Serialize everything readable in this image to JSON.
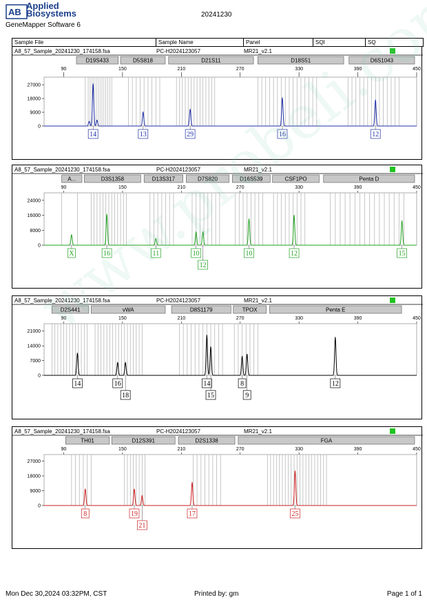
{
  "header": {
    "brand_line1": "Applied",
    "brand_line2": "Biosystems",
    "software": "GeneMapper Software 6",
    "run_date": "20241230"
  },
  "columns": [
    "Sample File",
    "Sample Name",
    "Panel",
    "SQI",
    "SQ"
  ],
  "footer": {
    "datetime": "Mon Dec 30,2024 03:32PM, CST",
    "printed_by": "Printed by: gm",
    "page": "Page 1 of 1"
  },
  "watermark": "www.probeli.com.cn",
  "colors": {
    "blue": "#1f2fa8",
    "green": "#22a022",
    "black": "#000000",
    "red": "#cc1f1f",
    "status_ok": "#22c322"
  },
  "chart_data": [
    {
      "type": "line",
      "sample_file": "A8_57_Sample_20241230_174158.fsa",
      "sample_name": "PC-H2024123057",
      "panel": "MR21_v2.1",
      "color": "blue",
      "xlim": [
        70,
        450
      ],
      "xticks": [
        90,
        150,
        210,
        270,
        330,
        390,
        450
      ],
      "ylim": [
        0,
        32000
      ],
      "yticks": [
        0,
        9000,
        18000,
        27000
      ],
      "markers": [
        {
          "name": "D19S433",
          "range": [
            103,
            147
          ]
        },
        {
          "name": "D5S818",
          "range": [
            148,
            195
          ]
        },
        {
          "name": "D21S11",
          "range": [
            197,
            285
          ]
        },
        {
          "name": "D18S51",
          "range": [
            288,
            377
          ]
        },
        {
          "name": "D6S1043",
          "range": [
            381,
            456
          ]
        }
      ],
      "bins": [
        112,
        115,
        117,
        119,
        121,
        123,
        125,
        127,
        129,
        131,
        133,
        135,
        137,
        139,
        156,
        160,
        164,
        168,
        172,
        176,
        180,
        184,
        188,
        205,
        208,
        211,
        214,
        217,
        220,
        223,
        226,
        229,
        232,
        235,
        238,
        241,
        244,
        288,
        292,
        296,
        300,
        304,
        308,
        312,
        316,
        320,
        324,
        328,
        332,
        336,
        340,
        344,
        348,
        380,
        384,
        388,
        392,
        396,
        400,
        404,
        408,
        412,
        416,
        420,
        424,
        428,
        432
      ],
      "peaks": [
        {
          "x": 116,
          "height": 3000
        },
        {
          "x": 120,
          "height": 27500
        },
        {
          "x": 124,
          "height": 3800
        },
        {
          "x": 171,
          "height": 9000
        },
        {
          "x": 219,
          "height": 11000
        },
        {
          "x": 313,
          "height": 18500
        },
        {
          "x": 408,
          "height": 17000
        }
      ],
      "alleles": [
        {
          "label": "14",
          "x": 120,
          "row": 0
        },
        {
          "label": "13",
          "x": 171,
          "row": 0
        },
        {
          "label": "29",
          "x": 219,
          "row": 0
        },
        {
          "label": "16",
          "x": 313,
          "row": 0
        },
        {
          "label": "12",
          "x": 408,
          "row": 0
        }
      ]
    },
    {
      "type": "line",
      "sample_file": "A8_57_Sample_20241230_174158.fsa",
      "sample_name": "PC-H2024123057",
      "panel": "MR21_v2.1",
      "color": "green",
      "xlim": [
        70,
        450
      ],
      "xticks": [
        90,
        150,
        210,
        270,
        330,
        390,
        450
      ],
      "ylim": [
        0,
        28000
      ],
      "yticks": [
        0,
        8000,
        16000,
        24000
      ],
      "markers": [
        {
          "name": "A...",
          "range": [
            88,
            110
          ]
        },
        {
          "name": "D3S1358",
          "range": [
            111,
            170
          ]
        },
        {
          "name": "D13S317",
          "range": [
            172,
            213
          ]
        },
        {
          "name": "D7S820",
          "range": [
            215,
            260
          ]
        },
        {
          "name": "D16S539",
          "range": [
            262,
            302
          ]
        },
        {
          "name": "CSF1PO",
          "range": [
            303,
            352
          ]
        },
        {
          "name": "Penta D",
          "range": [
            355,
            456
          ]
        }
      ],
      "bins": [
        88,
        104,
        118,
        121,
        124,
        127,
        130,
        133,
        136,
        139,
        142,
        145,
        148,
        151,
        154,
        178,
        182,
        186,
        190,
        194,
        198,
        202,
        221,
        225,
        229,
        233,
        237,
        241,
        245,
        249,
        265,
        269,
        273,
        277,
        281,
        285,
        289,
        293,
        304,
        308,
        312,
        316,
        320,
        324,
        328,
        332,
        336,
        362,
        367,
        372,
        377,
        382,
        387,
        392,
        397,
        402,
        407,
        412,
        417,
        422,
        427,
        432,
        437
      ],
      "peaks": [
        {
          "x": 98,
          "height": 5500
        },
        {
          "x": 134,
          "height": 16500
        },
        {
          "x": 184,
          "height": 3500
        },
        {
          "x": 225,
          "height": 7000
        },
        {
          "x": 232,
          "height": 7000
        },
        {
          "x": 279,
          "height": 14000
        },
        {
          "x": 325,
          "height": 16000
        },
        {
          "x": 435,
          "height": 13000
        }
      ],
      "alleles": [
        {
          "label": "X",
          "x": 98,
          "row": 0
        },
        {
          "label": "16",
          "x": 134,
          "row": 0
        },
        {
          "label": "11",
          "x": 184,
          "row": 0
        },
        {
          "label": "10",
          "x": 225,
          "row": 0
        },
        {
          "label": "12",
          "x": 232,
          "row": 1
        },
        {
          "label": "10",
          "x": 279,
          "row": 0
        },
        {
          "label": "12",
          "x": 325,
          "row": 0
        },
        {
          "label": "15",
          "x": 435,
          "row": 0
        }
      ]
    },
    {
      "type": "line",
      "sample_file": "A8_57_Sample_20241230_174158.fsa",
      "sample_name": "PC-H2024123057",
      "panel": "MR21_v2.1",
      "color": "black",
      "xlim": [
        70,
        450
      ],
      "xticks": [
        90,
        150,
        210,
        270,
        330,
        390,
        450
      ],
      "ylim": [
        0,
        24500
      ],
      "yticks": [
        0,
        7000,
        14000,
        21000
      ],
      "markers": [
        {
          "name": "D2S441",
          "range": [
            78,
            117
          ]
        },
        {
          "name": "vWA",
          "range": [
            118,
            195
          ]
        },
        {
          "name": "D8S1179",
          "range": [
            200,
            262
          ]
        },
        {
          "name": "TPOX",
          "range": [
            263,
            298
          ]
        },
        {
          "name": "Penta E",
          "range": [
            300,
            436
          ]
        }
      ],
      "bins": [
        78,
        81,
        84,
        87,
        90,
        93,
        96,
        99,
        102,
        105,
        108,
        111,
        114,
        122,
        125,
        128,
        131,
        134,
        137,
        140,
        143,
        146,
        149,
        152,
        155,
        158,
        161,
        164,
        167,
        170,
        208,
        212,
        216,
        220,
        224,
        228,
        232,
        236,
        240,
        244,
        248,
        252,
        264,
        268,
        272,
        276,
        280,
        284,
        288
      ],
      "peaks": [
        {
          "x": 104,
          "height": 10500
        },
        {
          "x": 145,
          "height": 6000
        },
        {
          "x": 153,
          "height": 6000
        },
        {
          "x": 236,
          "height": 19000
        },
        {
          "x": 240,
          "height": 13500
        },
        {
          "x": 272,
          "height": 9000
        },
        {
          "x": 277,
          "height": 10000
        },
        {
          "x": 367,
          "height": 18000
        }
      ],
      "alleles": [
        {
          "label": "14",
          "x": 104,
          "row": 0
        },
        {
          "label": "16",
          "x": 145,
          "row": 0
        },
        {
          "label": "18",
          "x": 153,
          "row": 1
        },
        {
          "label": "14",
          "x": 236,
          "row": 0
        },
        {
          "label": "15",
          "x": 240,
          "row": 1
        },
        {
          "label": "8",
          "x": 272,
          "row": 0
        },
        {
          "label": "9",
          "x": 277,
          "row": 1
        },
        {
          "label": "12",
          "x": 367,
          "row": 0
        }
      ]
    },
    {
      "type": "line",
      "sample_file": "A8_57_Sample_20241230_174158.fsa",
      "sample_name": "PC-H2024123057",
      "panel": "MR21_v2.1",
      "color": "red",
      "xlim": [
        70,
        450
      ],
      "xticks": [
        90,
        150,
        210,
        270,
        330,
        390,
        450
      ],
      "ylim": [
        0,
        31000
      ],
      "yticks": [
        0,
        9000,
        18000,
        27000
      ],
      "markers": [
        {
          "name": "TH01",
          "range": [
            92,
            138
          ]
        },
        {
          "name": "D12S391",
          "range": [
            139,
            205
          ]
        },
        {
          "name": "D2S1338",
          "range": [
            207,
            266
          ]
        },
        {
          "name": "FGA",
          "range": [
            268,
            456
          ]
        }
      ],
      "bins": [
        98,
        102,
        106,
        110,
        114,
        118,
        152,
        155,
        158,
        161,
        164,
        167,
        170,
        173,
        222,
        226,
        230,
        234,
        238,
        242,
        246,
        250,
        298,
        301,
        304,
        307,
        310,
        313,
        316,
        319,
        322,
        325,
        328,
        331,
        334,
        337,
        340,
        343,
        346,
        349,
        352,
        355,
        358
      ],
      "peaks": [
        {
          "x": 112,
          "height": 10000
        },
        {
          "x": 162,
          "height": 10000
        },
        {
          "x": 170,
          "height": 6000
        },
        {
          "x": 221,
          "height": 14000
        },
        {
          "x": 326,
          "height": 21000
        }
      ],
      "alleles": [
        {
          "label": "8",
          "x": 112,
          "row": 0
        },
        {
          "label": "19",
          "x": 162,
          "row": 0
        },
        {
          "label": "21",
          "x": 170,
          "row": 1
        },
        {
          "label": "17",
          "x": 221,
          "row": 0
        },
        {
          "label": "25",
          "x": 326,
          "row": 0
        }
      ]
    }
  ]
}
